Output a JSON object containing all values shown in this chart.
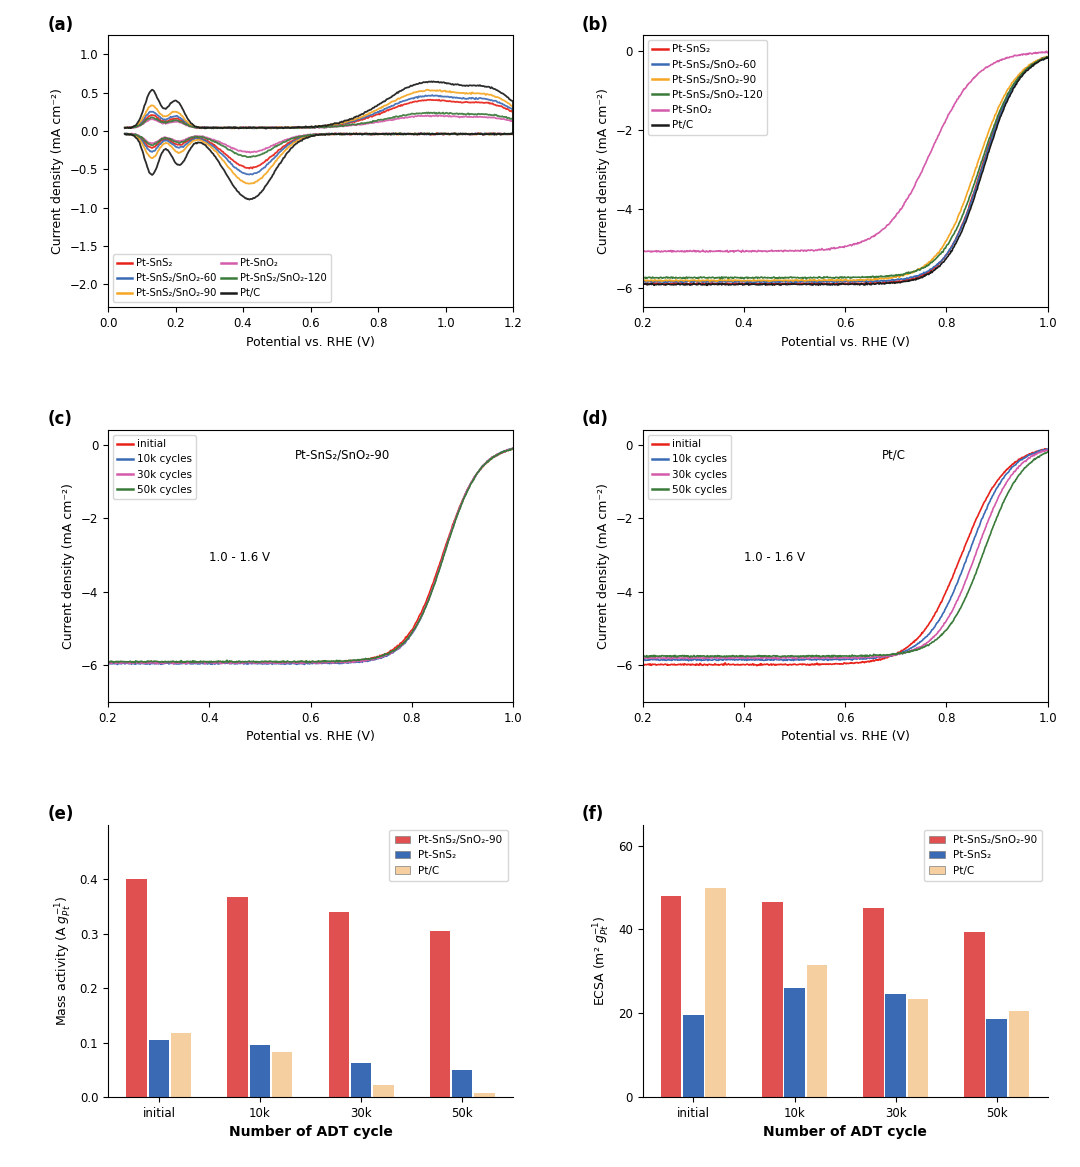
{
  "fig_size": [
    10.8,
    11.67
  ],
  "panel_a": {
    "xlabel": "Potential vs. RHE (V)",
    "ylabel": "Current density (mA cm⁻²)",
    "xlim": [
      0.0,
      1.2
    ],
    "ylim": [
      -2.3,
      1.25
    ],
    "xticks": [
      0.0,
      0.2,
      0.4,
      0.6,
      0.8,
      1.0,
      1.2
    ],
    "yticks": [
      -2.0,
      -1.5,
      -1.0,
      -0.5,
      0.0,
      0.5,
      1.0
    ],
    "legend_labels": [
      "Pt-SnS₂",
      "Pt-SnS₂/SnO₂-60",
      "Pt-SnS₂/SnO₂-90",
      "Pt-SnO₂",
      "Pt-SnS₂/SnO₂-120",
      "Pt/C"
    ],
    "legend_colors": [
      "#E8221A",
      "#3B6AB5",
      "#F5A623",
      "#D45BAA",
      "#3A7A3A",
      "#1A1A1A"
    ]
  },
  "panel_b": {
    "xlabel": "Potential vs. RHE (V)",
    "ylabel": "Current density (mA cm⁻²)",
    "xlim": [
      0.2,
      1.0
    ],
    "ylim": [
      -6.5,
      0.4
    ],
    "xticks": [
      0.2,
      0.4,
      0.6,
      0.8,
      1.0
    ],
    "yticks": [
      -6,
      -4,
      -2,
      0
    ],
    "legend_labels": [
      "Pt-SnS₂",
      "Pt-SnS₂/SnO₂-60",
      "Pt-SnS₂/SnO₂-90",
      "Pt-SnS₂/SnO₂-120",
      "Pt-SnO₂",
      "Pt/C"
    ],
    "legend_colors": [
      "#E8221A",
      "#3B6AB5",
      "#F5A623",
      "#3A7A3A",
      "#D45BAA",
      "#1A1A1A"
    ]
  },
  "panel_cd": {
    "xlabel": "Potential vs. RHE (V)",
    "ylabel": "Current density (mA cm⁻²)",
    "xlim": [
      0.2,
      1.0
    ],
    "ylim": [
      -7.0,
      0.4
    ],
    "xticks": [
      0.2,
      0.4,
      0.6,
      0.8,
      1.0
    ],
    "yticks": [
      -6,
      -4,
      -2,
      0
    ],
    "legend_labels": [
      "initial",
      "10k cycles",
      "30k cycles",
      "50k cycles"
    ],
    "legend_colors": [
      "#E8221A",
      "#3B6AB5",
      "#D45BAA",
      "#3A7A3A"
    ]
  },
  "panel_e": {
    "xlabel": "Number of ADT cycle",
    "ylabel": "Mass activity (A $g_{Pt}^{-1}$)",
    "ylim": [
      0,
      0.5
    ],
    "yticks": [
      0.0,
      0.1,
      0.2,
      0.3,
      0.4
    ],
    "categories": [
      "initial",
      "10k",
      "30k",
      "50k"
    ],
    "series_90": [
      0.4,
      0.368,
      0.34,
      0.305
    ],
    "series_sns": [
      0.105,
      0.096,
      0.062,
      0.05
    ],
    "series_ptc": [
      0.118,
      0.082,
      0.022,
      0.008
    ],
    "bar_colors": [
      "#E05050",
      "#3B6AB5",
      "#F5CFA0"
    ],
    "legend_labels": [
      "Pt-SnS₂/SnO₂-90",
      "Pt-SnS₂",
      "Pt/C"
    ]
  },
  "panel_f": {
    "xlabel": "Number of ADT cycle",
    "ylabel": "ECSA (m² $g_{Pt}^{-1}$)",
    "ylim": [
      0,
      65
    ],
    "yticks": [
      0,
      20,
      40,
      60
    ],
    "categories": [
      "initial",
      "10k",
      "30k",
      "50k"
    ],
    "series_90": [
      48.0,
      46.5,
      45.0,
      39.5
    ],
    "series_sns": [
      19.5,
      26.0,
      24.5,
      18.5
    ],
    "series_ptc": [
      50.0,
      31.5,
      23.5,
      20.5
    ],
    "bar_colors": [
      "#E05050",
      "#3B6AB5",
      "#F5CFA0"
    ],
    "legend_labels": [
      "Pt-SnS₂/SnO₂-90",
      "Pt-SnS₂",
      "Pt/C"
    ]
  }
}
